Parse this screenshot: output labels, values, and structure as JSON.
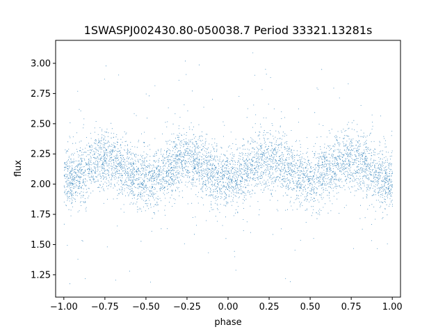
{
  "chart_data": {
    "type": "scatter",
    "title": "1SWASPJ002430.80-050038.7 Period 33321.13281s",
    "xlabel": "phase",
    "ylabel": "flux",
    "xlim": [
      -1.05,
      1.05
    ],
    "ylim": [
      1.065,
      3.19
    ],
    "x_ticks": [
      -1.0,
      -0.75,
      -0.5,
      -0.25,
      0.0,
      0.25,
      0.5,
      0.75,
      1.0
    ],
    "x_tick_labels": [
      "−1.00",
      "−0.75",
      "−0.50",
      "−0.25",
      "0.00",
      "0.25",
      "0.50",
      "0.75",
      "1.00"
    ],
    "y_ticks": [
      1.25,
      1.5,
      1.75,
      2.0,
      2.25,
      2.5,
      2.75,
      3.0
    ],
    "y_tick_labels": [
      "1.25",
      "1.50",
      "1.75",
      "2.00",
      "2.25",
      "2.50",
      "2.75",
      "3.00"
    ],
    "grid": false,
    "marker_color": "#1f77b4",
    "series": [
      {
        "x_range": [
          -1.0,
          1.0
        ],
        "n_points": 9000,
        "mean_flux": 2.12,
        "modulation_amplitude": 0.085,
        "cycles_per_unit_phase": 2,
        "flux_at_phase_zero": "minimum",
        "scatter_sigma": 0.12,
        "outlier_flux_range": [
          1.17,
          3.1
        ]
      }
    ]
  }
}
